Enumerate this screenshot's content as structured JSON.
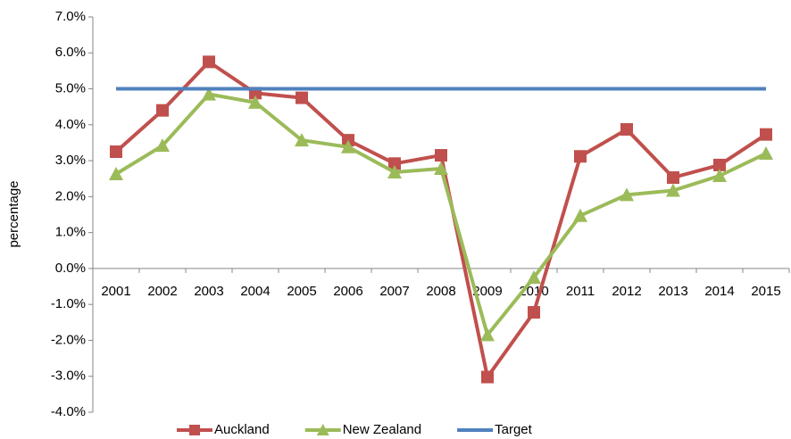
{
  "chart_data": {
    "type": "line",
    "y_label": "percentage",
    "categories": [
      "2001",
      "2002",
      "2003",
      "2004",
      "2005",
      "2006",
      "2007",
      "2008",
      "2009",
      "2010",
      "2011",
      "2012",
      "2013",
      "2014",
      "2015"
    ],
    "series": [
      {
        "name": "Auckland",
        "color": "#c0504d",
        "marker": "square",
        "values": [
          3.25,
          4.4,
          5.75,
          4.88,
          4.75,
          3.57,
          2.92,
          3.15,
          -3.02,
          -1.22,
          3.12,
          3.87,
          2.53,
          2.88,
          3.73
        ]
      },
      {
        "name": "New Zealand",
        "color": "#9bbb59",
        "marker": "triangle",
        "values": [
          2.63,
          3.42,
          4.85,
          4.62,
          3.57,
          3.38,
          2.68,
          2.78,
          -1.85,
          -0.25,
          1.47,
          2.05,
          2.17,
          2.58,
          3.2
        ]
      },
      {
        "name": "Target",
        "color": "#4f81bd",
        "marker": "none",
        "values": [
          5,
          5,
          5,
          5,
          5,
          5,
          5,
          5,
          5,
          5,
          5,
          5,
          5,
          5,
          5
        ]
      }
    ],
    "ylim": [
      -4,
      7
    ],
    "yticks": [
      {
        "value": -4,
        "label": "-4.0%"
      },
      {
        "value": -3,
        "label": "-3.0%"
      },
      {
        "value": -2,
        "label": "-2.0%"
      },
      {
        "value": -1,
        "label": "-1.0%"
      },
      {
        "value": 0,
        "label": "0.0%"
      },
      {
        "value": 1,
        "label": "1.0%"
      },
      {
        "value": 2,
        "label": "2.0%"
      },
      {
        "value": 3,
        "label": "3.0%"
      },
      {
        "value": 4,
        "label": "4.0%"
      },
      {
        "value": 5,
        "label": "5.0%"
      },
      {
        "value": 6,
        "label": "6.0%"
      },
      {
        "value": 7,
        "label": "7.0%"
      }
    ],
    "grid": false,
    "legend": "bottom"
  }
}
